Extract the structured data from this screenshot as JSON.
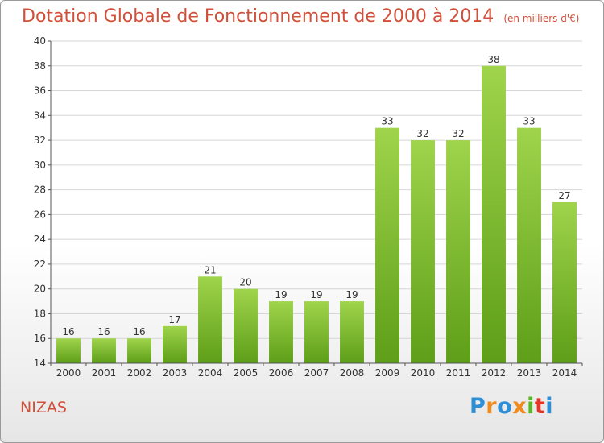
{
  "header": {
    "title": "Dotation Globale de Fonctionnement de 2000 à 2014",
    "unit": "(en milliers d'€)"
  },
  "footer": {
    "place": "NIZAS",
    "logo": [
      "P",
      "r",
      "o",
      "x",
      "i",
      "t",
      "i"
    ]
  },
  "colors": {
    "bar_light": "#9fd44c",
    "bar_dark": "#5e9e18",
    "grid": "#d6d6d6",
    "title": "#d0503a"
  },
  "chart_data": {
    "type": "bar",
    "title": "Dotation Globale de Fonctionnement de 2000 à 2014",
    "subtitle": "(en milliers d'€)",
    "xlabel": "",
    "ylabel": "",
    "categories": [
      "2000",
      "2001",
      "2002",
      "2003",
      "2004",
      "2005",
      "2006",
      "2007",
      "2008",
      "2009",
      "2010",
      "2011",
      "2012",
      "2013",
      "2014"
    ],
    "values": [
      16,
      16,
      16,
      17,
      21,
      20,
      19,
      19,
      19,
      33,
      32,
      32,
      38,
      33,
      27
    ],
    "ylim": [
      14,
      40
    ],
    "yticks": [
      14,
      16,
      18,
      20,
      22,
      24,
      26,
      28,
      30,
      32,
      34,
      36,
      38,
      40
    ],
    "grid": "horizontal",
    "legend": "none"
  }
}
